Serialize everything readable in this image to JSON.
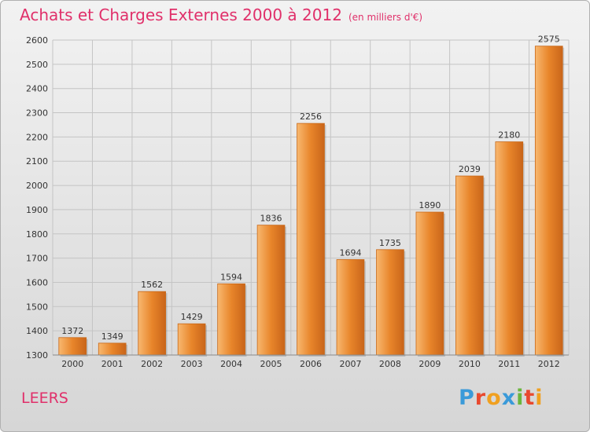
{
  "header": {
    "title": "Achats et Charges Externes 2000 à 2012",
    "unit": "(en milliers d'€)"
  },
  "footer": {
    "place": "LEERS",
    "brand": "Proxiti",
    "brand_letters": [
      "P",
      "r",
      "o",
      "x",
      "i",
      "t",
      "i"
    ],
    "brand_colors": [
      "#3a9ad9",
      "#e8492e",
      "#f0a020",
      "#3a9ad9",
      "#6ab63c",
      "#e8492e",
      "#f0a020"
    ]
  },
  "colors": {
    "title": "#e0306a",
    "bar": "#e8852a"
  },
  "chart_data": {
    "type": "bar",
    "title": "Achats et Charges Externes 2000 à 2012",
    "subtitle": "(en milliers d'€)",
    "categories": [
      "2000",
      "2001",
      "2002",
      "2003",
      "2004",
      "2005",
      "2006",
      "2007",
      "2008",
      "2009",
      "2010",
      "2011",
      "2012"
    ],
    "values": [
      1372,
      1349,
      1562,
      1429,
      1594,
      1836,
      2256,
      1694,
      1735,
      1890,
      2039,
      2180,
      2575
    ],
    "ylim": [
      1300,
      2600
    ],
    "yticks": [
      1300,
      1400,
      1500,
      1600,
      1700,
      1800,
      1900,
      2000,
      2100,
      2200,
      2300,
      2400,
      2500,
      2600
    ],
    "grid": true,
    "data_labels": true
  }
}
